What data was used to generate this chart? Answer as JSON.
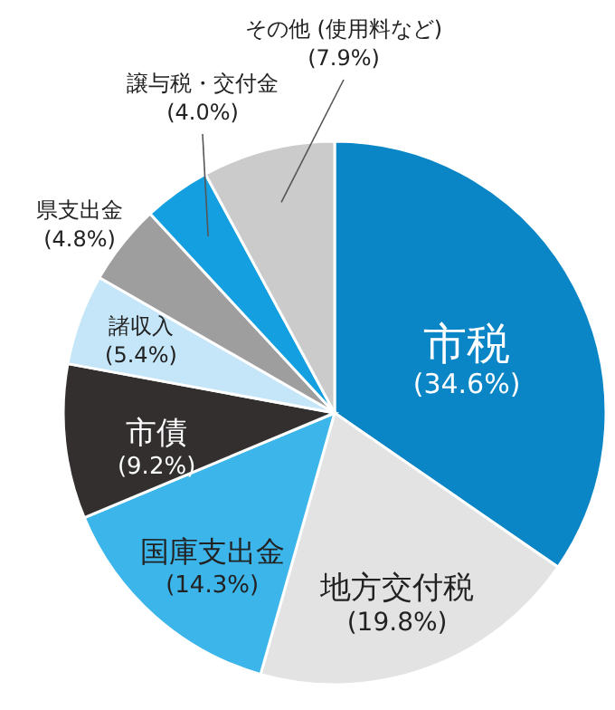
{
  "chart_data": {
    "type": "pie",
    "categories": [
      "市税",
      "地方交付税",
      "国庫支出金",
      "市債",
      "諸収入",
      "県支出金",
      "譲与税・交付金",
      "その他 (使用料など)"
    ],
    "values": [
      34.6,
      19.8,
      14.3,
      9.2,
      5.4,
      4.8,
      4.0,
      7.9
    ],
    "value_labels": [
      "(34.6%)",
      "(19.8%)",
      "(14.3%)",
      "(9.2%)",
      "(5.4%)",
      "(4.8%)",
      "(4.0%)",
      "(7.9%)"
    ],
    "colors": [
      "#0a85c6",
      "#e3e3e3",
      "#3bb5ea",
      "#332f2f",
      "#c5e6f8",
      "#9e9e9e",
      "#139fe0",
      "#cbcbcb"
    ]
  }
}
